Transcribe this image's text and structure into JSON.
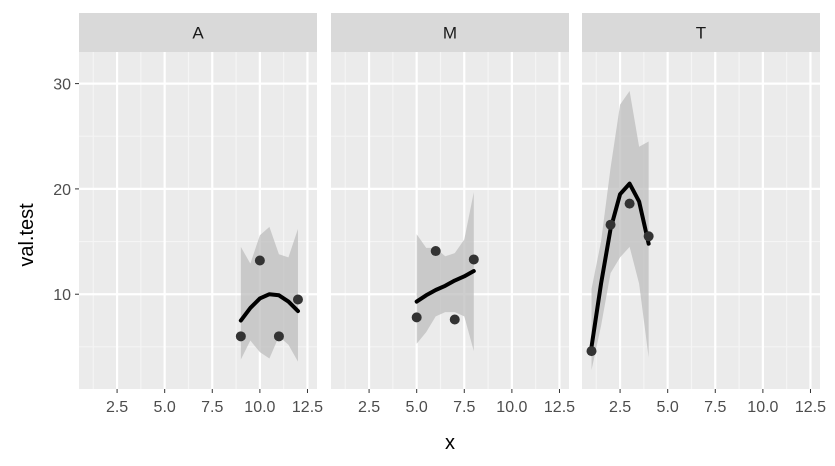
{
  "chart_data": {
    "type": "scatter",
    "xlabel": "x",
    "ylabel": "val.test",
    "facets": [
      "A",
      "M",
      "T"
    ],
    "xlim": [
      0.5,
      13.0
    ],
    "ylim": [
      1.0,
      33.0
    ],
    "x_ticks": [
      2.5,
      5.0,
      7.5,
      10.0,
      12.5
    ],
    "x_tick_labels": [
      "2.5",
      "5.0",
      "7.5",
      "10.0",
      "12.5"
    ],
    "y_ticks": [
      10,
      20,
      30
    ],
    "y_tick_labels": [
      "10",
      "20",
      "30"
    ],
    "grid": true,
    "panels": [
      {
        "name": "A",
        "points": [
          [
            9,
            6.0
          ],
          [
            10,
            13.2
          ],
          [
            11,
            6.0
          ],
          [
            12,
            9.5
          ]
        ],
        "smooth": [
          [
            9.0,
            7.5
          ],
          [
            9.5,
            8.7
          ],
          [
            10.0,
            9.6
          ],
          [
            10.5,
            10.0
          ],
          [
            11.0,
            9.9
          ],
          [
            11.5,
            9.3
          ],
          [
            12.0,
            8.4
          ]
        ],
        "band_upper": [
          [
            9.0,
            14.5
          ],
          [
            9.5,
            12.9
          ],
          [
            10.0,
            15.6
          ],
          [
            10.5,
            16.4
          ],
          [
            11.0,
            13.8
          ],
          [
            11.5,
            13.5
          ],
          [
            12.0,
            16.2
          ]
        ],
        "band_lower": [
          [
            9.0,
            3.8
          ],
          [
            9.5,
            5.6
          ],
          [
            10.0,
            4.5
          ],
          [
            10.5,
            3.9
          ],
          [
            11.0,
            6.0
          ],
          [
            11.5,
            5.2
          ],
          [
            12.0,
            3.6
          ]
        ]
      },
      {
        "name": "M",
        "points": [
          [
            5,
            7.8
          ],
          [
            6,
            14.1
          ],
          [
            7,
            7.6
          ],
          [
            8,
            13.3
          ]
        ],
        "smooth": [
          [
            5.0,
            9.3
          ],
          [
            5.5,
            9.9
          ],
          [
            6.0,
            10.4
          ],
          [
            6.5,
            10.8
          ],
          [
            7.0,
            11.3
          ],
          [
            7.5,
            11.7
          ],
          [
            8.0,
            12.2
          ]
        ],
        "band_upper": [
          [
            5.0,
            15.7
          ],
          [
            5.5,
            14.4
          ],
          [
            6.0,
            14.4
          ],
          [
            6.5,
            13.6
          ],
          [
            7.0,
            13.9
          ],
          [
            7.5,
            15.2
          ],
          [
            8.0,
            19.7
          ]
        ],
        "band_lower": [
          [
            5.0,
            5.3
          ],
          [
            5.5,
            6.4
          ],
          [
            6.0,
            7.9
          ],
          [
            6.5,
            8.3
          ],
          [
            7.0,
            8.3
          ],
          [
            7.5,
            7.9
          ],
          [
            8.0,
            4.6
          ]
        ]
      },
      {
        "name": "T",
        "points": [
          [
            1,
            4.6
          ],
          [
            2,
            16.6
          ],
          [
            3,
            18.6
          ],
          [
            4,
            15.5
          ]
        ],
        "smooth": [
          [
            1.0,
            5.0
          ],
          [
            1.5,
            11.0
          ],
          [
            2.0,
            16.2
          ],
          [
            2.5,
            19.5
          ],
          [
            3.0,
            20.5
          ],
          [
            3.5,
            18.8
          ],
          [
            4.0,
            14.8
          ]
        ],
        "band_upper": [
          [
            1.0,
            10.5
          ],
          [
            1.5,
            15.0
          ],
          [
            2.0,
            22.0
          ],
          [
            2.5,
            28.0
          ],
          [
            3.0,
            29.3
          ],
          [
            3.5,
            24.0
          ],
          [
            4.0,
            24.5
          ]
        ],
        "band_lower": [
          [
            1.0,
            2.8
          ],
          [
            1.5,
            7.0
          ],
          [
            2.0,
            12.0
          ],
          [
            2.5,
            13.5
          ],
          [
            3.0,
            14.5
          ],
          [
            3.5,
            11.0
          ],
          [
            4.0,
            4.0
          ]
        ]
      }
    ]
  },
  "colors": {
    "panel_background": "#ebebeb",
    "strip_background": "#d9d9d9",
    "grid_major": "#ffffff",
    "grid_minor": "#f5f5f5",
    "point": "#333333",
    "smooth_line": "#000000",
    "ribbon": "#bdbdbd"
  }
}
